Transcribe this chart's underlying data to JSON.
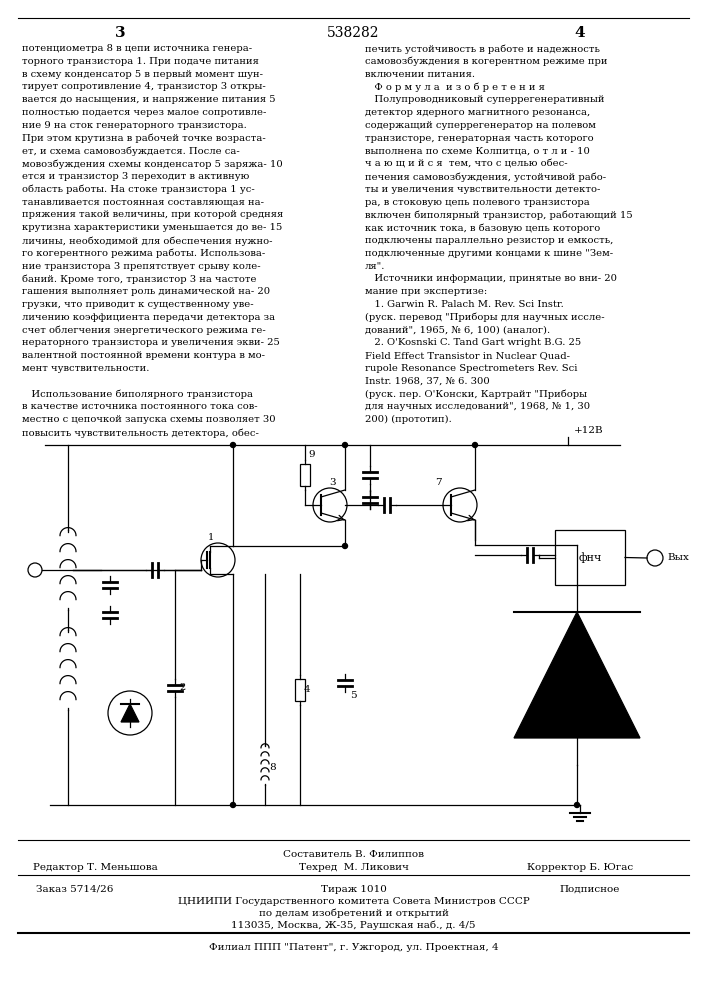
{
  "title_number": "538282",
  "page_left": "3",
  "page_right": "4",
  "background_color": "#ffffff",
  "text_color": "#000000",
  "left_column_text": [
    "потенциометра 8 в цепи источника генера-",
    "торного транзистора 1. При подаче питания",
    "в схему конденсатор 5 в первый момент шун-",
    "тирует сопротивление 4, транзистор 3 откры-",
    "вается до насыщения, и напряжение питания 5",
    "полностью подается через малое сопротивле-",
    "ние 9 на сток генераторного транзистора.",
    "При этом крутизна в рабочей точке возраста-",
    "ет, и схема самовозбуждается. После са-",
    "мовозбуждения схемы конденсатор 5 заряжа- 10",
    "ется и транзистор 3 переходит в активную",
    "область работы. На стоке транзистора 1 ус-",
    "танавливается постоянная составляющая на-",
    "пряжения такой величины, при которой средняя",
    "крутизна характеристики уменьшается до ве- 15",
    "личины, необходимой для обеспечения нужно-",
    "го когерентного режима работы. Использова-",
    "ние транзистора 3 препятствует срыву коле-",
    "баний. Кроме того, транзистор 3 на частоте",
    "гашения выполняет роль динамической на- 20",
    "грузки, что приводит к существенному уве-",
    "личению коэффициента передачи детектора за",
    "счет облегчения энергетического режима ге-",
    "нераторного транзистора и увеличения экви- 25",
    "валентной постоянной времени контура в мо-",
    "мент чувствительности.",
    "",
    "   Использование биполярного транзистора",
    "в качестве источника постоянного тока сов-",
    "местно с цепочкой запуска схемы позволяет 30",
    "повысить чувствительность детектора, обес-"
  ],
  "right_column_text": [
    "печить устойчивость в работе и надежность",
    "самовозбуждения в когерентном режиме при",
    "включении питания.",
    "   Ф о р м у л а  и з о б р е т е н и я",
    "   Полупроводниковый суперрегенеративный",
    "детектор ядерного магнитного резонанса,",
    "содержащий суперрегенератор на полевом",
    "транзисторе, генераторная часть которого",
    "выполнена по схеме Колпитца, о т л и - 10",
    "ч а ю щ и й с я  тем, что с целью обес-",
    "печения самовозбуждения, устойчивой рабо-",
    "ты и увеличения чувствительности детекто-",
    "ра, в стоковую цепь полевого транзистора",
    "включен биполярный транзистор, работающий 15",
    "как источник тока, в базовую цепь которого",
    "подключены параллельно резистор и емкость,",
    "подключенные другими концами к шине \"Зем-",
    "ля\".",
    "   Источники информации, принятые во вни- 20",
    "мание при экспертизе:",
    "   1. Garwin R. Palach M. Rev. Sci Instr.",
    "(руск. перевод \"Приборы для научных иссле-",
    "дований\", 1965, № 6, 100) (аналог).",
    "   2. O'Kosnski C. Tand Gart wright B.G. 25",
    "Field Effect Transistor in Nuclear Quad-",
    "rupole Resonance Spectrometers Rev. Sci",
    "Instr. 1968, 37, № 6. 300",
    "(руск. пер. О'Конски, Картрайт \"Приборы",
    "для научных исследований\", 1968, № 1, 30",
    "200) (прототип)."
  ],
  "footer_composer": "Составитель В. Филиппов",
  "footer_editor": "Редактор Т. Меньшова",
  "footer_tech": "Техред  М. Ликович",
  "footer_corrector": "Корректор Б. Югас",
  "footer_order": "Заказ 5714/26",
  "footer_print": "Тираж 1010",
  "footer_subscription": "Подписное",
  "footer_org": "ЦНИИПИ Государственного комитета Совета Министров СССР",
  "footer_dept": "по делам изобретений и открытий",
  "footer_address": "113035, Москва, Ж-35, Раушская наб., д. 4/5",
  "footer_branch": "Филиал ППП \"Патент\", г. Ужгород, ул. Проектная, 4"
}
